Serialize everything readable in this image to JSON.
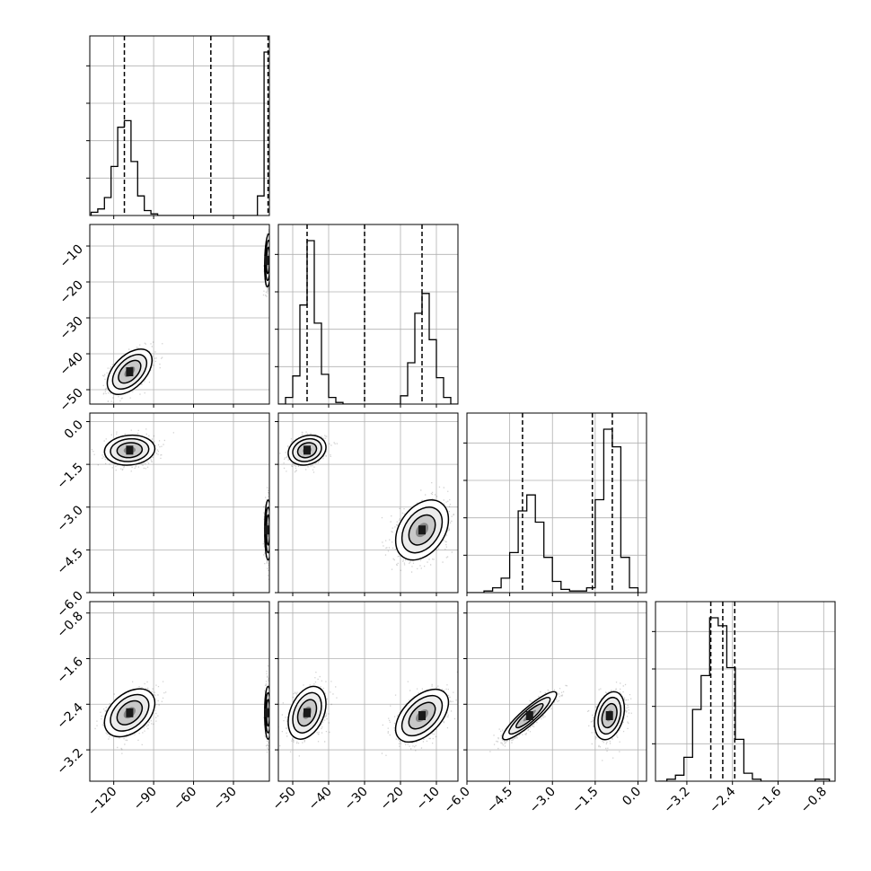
{
  "chart_data": {
    "type": "scatter",
    "plot": "corner",
    "grid": true,
    "title": "",
    "colors": {
      "line": "#000000",
      "points": "#000000",
      "grid": "#b0b0b0",
      "background": "#ffffff"
    },
    "parameters": [
      {
        "ticks": [
          -120,
          -90,
          -60,
          -30
        ],
        "tick_labels": [
          "−120",
          "−90",
          "−60",
          "−30"
        ],
        "range": [
          -138,
          -3
        ],
        "quantiles": [
          -112,
          -47,
          -4
        ],
        "histogram": {
          "edges": [
            -137,
            -132,
            -127,
            -122,
            -117,
            -112,
            -107,
            -102,
            -97,
            -92,
            -87,
            -82,
            -77,
            -72,
            -67,
            -62,
            -57,
            -52,
            -47,
            -42,
            -37,
            -32,
            -27,
            -22,
            -17,
            -12,
            -7,
            -2
          ],
          "counts": [
            0.02,
            0.04,
            0.11,
            0.3,
            0.54,
            0.58,
            0.33,
            0.12,
            0.03,
            0.01,
            0,
            0,
            0,
            0,
            0,
            0,
            0,
            0,
            0,
            0,
            0,
            0,
            0,
            0,
            0,
            0.12,
            1.0
          ]
        }
      },
      {
        "ticks": [
          -50,
          -40,
          -30,
          -20,
          -10
        ],
        "tick_labels": [
          "−50",
          "−40",
          "−30",
          "−20",
          "−10"
        ],
        "range": [
          -54,
          -4
        ],
        "quantiles": [
          -46,
          -30,
          -14
        ],
        "histogram": {
          "edges": [
            -54,
            -52,
            -50,
            -48,
            -46,
            -44,
            -42,
            -40,
            -38,
            -36,
            -34,
            -32,
            -30,
            -28,
            -26,
            -24,
            -22,
            -20,
            -18,
            -16,
            -14,
            -12,
            -10,
            -8,
            -6,
            -4
          ],
          "counts": [
            0,
            0.04,
            0.17,
            0.6,
            0.99,
            0.49,
            0.18,
            0.04,
            0.01,
            0,
            0,
            0,
            0,
            0,
            0,
            0,
            0,
            0.05,
            0.25,
            0.55,
            0.67,
            0.39,
            0.16,
            0.04,
            0
          ]
        }
      },
      {
        "ticks": [
          -6.0,
          -4.5,
          -3.0,
          -1.5,
          0.0
        ],
        "tick_labels": [
          "−6.0",
          "−4.5",
          "−3.0",
          "−1.5",
          "0.0"
        ],
        "range": [
          -6.0,
          0.3
        ],
        "quantiles": [
          -4.05,
          -1.6,
          -0.9
        ],
        "histogram": {
          "edges": [
            -6.0,
            -5.7,
            -5.4,
            -5.1,
            -4.8,
            -4.5,
            -4.2,
            -3.9,
            -3.6,
            -3.3,
            -3.0,
            -2.7,
            -2.4,
            -2.1,
            -1.8,
            -1.5,
            -1.2,
            -0.9,
            -0.6,
            -0.3,
            0.0
          ],
          "counts": [
            0,
            0,
            0.01,
            0.03,
            0.09,
            0.25,
            0.51,
            0.61,
            0.44,
            0.22,
            0.07,
            0.02,
            0.01,
            0.01,
            0.03,
            0.58,
            1.02,
            0.91,
            0.22,
            0.03
          ]
        }
      },
      {
        "ticks": [
          -3.2,
          -2.4,
          -1.6,
          -0.8
        ],
        "tick_labels": [
          "−3.2",
          "−2.4",
          "−1.6",
          "−0.8"
        ],
        "range": [
          -3.75,
          -0.6
        ],
        "quantiles": [
          -2.78,
          -2.57,
          -2.36
        ],
        "histogram": {
          "edges": [
            -3.7,
            -3.55,
            -3.4,
            -3.25,
            -3.1,
            -2.95,
            -2.8,
            -2.65,
            -2.5,
            -2.35,
            -2.2,
            -2.05,
            -1.9,
            -1.75,
            -1.6,
            -1.45,
            -1.3,
            -1.15,
            -0.95,
            -0.7
          ],
          "counts": [
            0,
            0.01,
            0.03,
            0.12,
            0.36,
            0.53,
            0.82,
            0.78,
            0.57,
            0.21,
            0.04,
            0.01,
            0,
            0,
            0,
            0,
            0,
            0,
            0.01
          ]
        }
      }
    ],
    "pair_panels": [
      {
        "x": 0,
        "y": 1,
        "modes": [
          {
            "mean": [
              -108,
              -45
            ],
            "sd": [
              8,
              3
            ],
            "rho": 0.5,
            "weight": 0.45
          },
          {
            "mean": [
              -4,
              -14
            ],
            "sd": [
              1.2,
              3.5
            ],
            "rho": 0.2,
            "weight": 0.55
          }
        ]
      },
      {
        "x": 0,
        "y": 2,
        "modes": [
          {
            "mean": [
              -108,
              -1.0
            ],
            "sd": [
              9,
              0.25
            ],
            "rho": 0.1,
            "weight": 0.45
          },
          {
            "mean": [
              -4,
              -3.8
            ],
            "sd": [
              1.2,
              0.5
            ],
            "rho": 0.0,
            "weight": 0.55
          }
        ]
      },
      {
        "x": 1,
        "y": 2,
        "modes": [
          {
            "mean": [
              -46,
              -1.0
            ],
            "sd": [
              2.5,
              0.25
            ],
            "rho": 0.2,
            "weight": 0.45
          },
          {
            "mean": [
              -14,
              -3.8
            ],
            "sd": [
              3.5,
              0.5
            ],
            "rho": 0.35,
            "weight": 0.55
          }
        ]
      },
      {
        "x": 0,
        "y": 3,
        "modes": [
          {
            "mean": [
              -108,
              -2.55
            ],
            "sd": [
              9,
              0.2
            ],
            "rho": 0.4,
            "weight": 0.45
          },
          {
            "mean": [
              -4,
              -2.55
            ],
            "sd": [
              1.2,
              0.22
            ],
            "rho": 0.0,
            "weight": 0.55
          }
        ]
      },
      {
        "x": 1,
        "y": 3,
        "modes": [
          {
            "mean": [
              -46,
              -2.55
            ],
            "sd": [
              2.5,
              0.22
            ],
            "rho": 0.35,
            "weight": 0.45
          },
          {
            "mean": [
              -14,
              -2.6
            ],
            "sd": [
              3.5,
              0.22
            ],
            "rho": 0.5,
            "weight": 0.55
          }
        ]
      },
      {
        "x": 2,
        "y": 3,
        "modes": [
          {
            "mean": [
              -3.8,
              -2.6
            ],
            "sd": [
              0.45,
              0.2
            ],
            "rho": 0.9,
            "weight": 0.55
          },
          {
            "mean": [
              -1.0,
              -2.6
            ],
            "sd": [
              0.25,
              0.2
            ],
            "rho": 0.3,
            "weight": 0.45
          }
        ]
      }
    ]
  }
}
